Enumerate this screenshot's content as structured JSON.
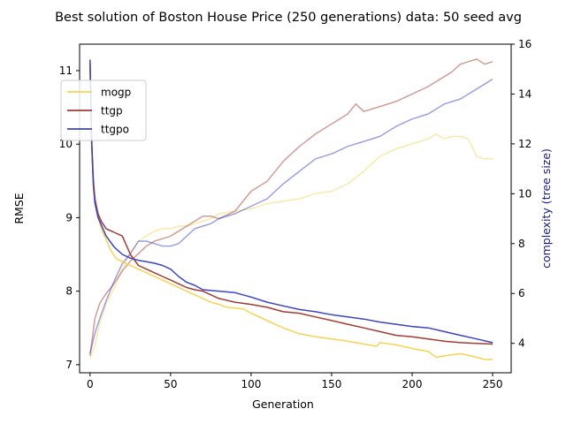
{
  "chart_data": {
    "type": "line",
    "title": "Best solution of Boston House Price (250 generations) data: 50 seed avg",
    "xlabel": "Generation",
    "ylabel": "RMSE",
    "ylabel_right": "complexity (tree size)",
    "xlim": [
      -6.5,
      261.5
    ],
    "ylim": [
      6.89,
      11.36
    ],
    "ylim_right": [
      2.82,
      16.0
    ],
    "xticks": [
      "0",
      "50",
      "100",
      "150",
      "200",
      "250"
    ],
    "yticks": [
      "7",
      "8",
      "9",
      "10",
      "11"
    ],
    "yticks_right": [
      "4",
      "6",
      "8",
      "10",
      "12",
      "14",
      "16"
    ],
    "legend_position": "upper-left",
    "grid": false,
    "series": [
      {
        "name": "mogp",
        "color": "#f7d354",
        "axis": "left",
        "x": [
          0,
          1,
          2,
          3,
          5,
          7,
          10,
          13,
          16,
          20,
          25,
          30,
          35,
          40,
          45,
          50,
          55,
          60,
          65,
          70,
          75,
          80,
          85,
          90,
          95,
          100,
          110,
          120,
          130,
          140,
          150,
          160,
          170,
          178,
          180,
          190,
          200,
          210,
          215,
          220,
          230,
          240,
          245,
          250
        ],
        "y": [
          11.1,
          10.2,
          9.6,
          9.3,
          9.0,
          8.85,
          8.7,
          8.55,
          8.45,
          8.4,
          8.35,
          8.3,
          8.25,
          8.2,
          8.15,
          8.1,
          8.05,
          8.0,
          7.95,
          7.9,
          7.85,
          7.82,
          7.78,
          7.77,
          7.76,
          7.7,
          7.6,
          7.5,
          7.42,
          7.38,
          7.35,
          7.32,
          7.28,
          7.25,
          7.3,
          7.27,
          7.22,
          7.18,
          7.1,
          7.12,
          7.15,
          7.1,
          7.07,
          7.07
        ]
      },
      {
        "name": "ttgp",
        "color": "#a33b32",
        "axis": "left",
        "x": [
          0,
          1,
          2,
          3,
          5,
          7,
          10,
          15,
          20,
          25,
          30,
          35,
          40,
          45,
          50,
          55,
          60,
          65,
          70,
          80,
          90,
          100,
          110,
          120,
          130,
          140,
          150,
          160,
          170,
          180,
          190,
          200,
          210,
          220,
          230,
          240,
          250
        ],
        "y": [
          11.1,
          10.0,
          9.5,
          9.25,
          9.05,
          8.95,
          8.85,
          8.8,
          8.75,
          8.5,
          8.35,
          8.3,
          8.25,
          8.2,
          8.15,
          8.1,
          8.05,
          8.02,
          8.0,
          7.9,
          7.85,
          7.82,
          7.78,
          7.72,
          7.7,
          7.65,
          7.6,
          7.55,
          7.5,
          7.45,
          7.4,
          7.38,
          7.35,
          7.32,
          7.3,
          7.29,
          7.28
        ]
      },
      {
        "name": "ttgpo",
        "color": "#3a44c4",
        "axis": "left",
        "x": [
          0,
          1,
          2,
          3,
          5,
          7,
          10,
          15,
          20,
          25,
          30,
          35,
          40,
          45,
          50,
          55,
          60,
          65,
          70,
          80,
          90,
          100,
          110,
          120,
          130,
          140,
          150,
          160,
          170,
          180,
          190,
          200,
          210,
          220,
          230,
          240,
          250
        ],
        "y": [
          11.15,
          10.0,
          9.45,
          9.2,
          9.0,
          8.9,
          8.75,
          8.6,
          8.5,
          8.45,
          8.42,
          8.4,
          8.38,
          8.35,
          8.3,
          8.2,
          8.12,
          8.08,
          8.02,
          8.0,
          7.98,
          7.92,
          7.85,
          7.8,
          7.75,
          7.72,
          7.68,
          7.65,
          7.62,
          7.58,
          7.55,
          7.52,
          7.5,
          7.45,
          7.4,
          7.35,
          7.3
        ]
      },
      {
        "name": "mogp complexity",
        "color": "#f7d354",
        "axis": "right",
        "faded": true,
        "x": [
          0,
          3,
          6,
          10,
          15,
          20,
          25,
          30,
          35,
          40,
          45,
          50,
          55,
          60,
          65,
          70,
          75,
          80,
          90,
          100,
          110,
          120,
          130,
          140,
          150,
          160,
          170,
          180,
          190,
          200,
          210,
          215,
          220,
          225,
          230,
          235,
          240,
          245,
          250
        ],
        "y": [
          3.4,
          3.9,
          4.8,
          5.6,
          6.2,
          7.0,
          7.6,
          8.1,
          8.3,
          8.5,
          8.6,
          8.6,
          8.7,
          8.7,
          8.8,
          8.9,
          9.0,
          9.2,
          9.3,
          9.4,
          9.6,
          9.7,
          9.8,
          10.0,
          10.1,
          10.4,
          10.9,
          11.5,
          11.8,
          12.0,
          12.2,
          12.4,
          12.2,
          12.3,
          12.3,
          12.2,
          11.5,
          11.4,
          11.4
        ]
      },
      {
        "name": "ttgp complexity",
        "color": "#a33b32",
        "axis": "right",
        "faded": true,
        "x": [
          0,
          3,
          6,
          10,
          15,
          20,
          25,
          30,
          35,
          40,
          45,
          50,
          55,
          60,
          65,
          70,
          75,
          80,
          90,
          100,
          110,
          120,
          130,
          140,
          150,
          160,
          165,
          170,
          180,
          190,
          200,
          210,
          215,
          220,
          225,
          230,
          235,
          240,
          245,
          250
        ],
        "y": [
          3.5,
          5.0,
          5.6,
          6.0,
          6.4,
          6.9,
          7.3,
          7.6,
          7.9,
          8.1,
          8.2,
          8.3,
          8.5,
          8.7,
          8.9,
          9.1,
          9.1,
          9.0,
          9.3,
          10.1,
          10.5,
          11.3,
          11.9,
          12.4,
          12.8,
          13.2,
          13.6,
          13.3,
          13.5,
          13.7,
          14.0,
          14.3,
          14.5,
          14.7,
          14.9,
          15.2,
          15.3,
          15.4,
          15.2,
          15.3
        ]
      },
      {
        "name": "ttgpo complexity",
        "color": "#3a44c4",
        "axis": "right",
        "faded": true,
        "x": [
          0,
          3,
          6,
          10,
          15,
          20,
          25,
          30,
          35,
          40,
          45,
          50,
          55,
          60,
          65,
          70,
          75,
          80,
          90,
          100,
          110,
          120,
          130,
          140,
          150,
          160,
          170,
          180,
          190,
          200,
          210,
          215,
          220,
          225,
          230,
          235,
          240,
          245,
          250
        ],
        "y": [
          3.6,
          4.4,
          5.0,
          5.7,
          6.5,
          7.2,
          7.6,
          8.1,
          8.1,
          8.0,
          7.9,
          7.9,
          8.0,
          8.3,
          8.6,
          8.7,
          8.8,
          9.0,
          9.2,
          9.5,
          9.8,
          10.4,
          10.9,
          11.4,
          11.6,
          11.9,
          12.1,
          12.3,
          12.7,
          13.0,
          13.2,
          13.4,
          13.6,
          13.7,
          13.8,
          14.0,
          14.2,
          14.4,
          14.6
        ]
      }
    ]
  }
}
